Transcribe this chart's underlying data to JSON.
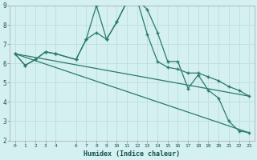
{
  "xlabel": "Humidex (Indice chaleur)",
  "bg_color": "#d4f0f0",
  "grid_color": "#c0e0e0",
  "line_color": "#2a7a6a",
  "xlim": [
    -0.5,
    23.5
  ],
  "ylim": [
    2,
    9
  ],
  "yticks": [
    2,
    3,
    4,
    5,
    6,
    7,
    8,
    9
  ],
  "xticks": [
    0,
    1,
    2,
    3,
    4,
    6,
    7,
    8,
    9,
    10,
    11,
    12,
    13,
    14,
    15,
    16,
    17,
    18,
    19,
    20,
    21,
    22,
    23
  ],
  "line1_x": [
    0,
    1,
    2,
    3,
    4,
    6,
    7,
    8,
    9,
    10,
    11,
    12,
    13,
    14,
    15,
    16,
    17,
    18,
    19,
    20,
    21,
    22,
    23
  ],
  "line1_y": [
    6.5,
    5.9,
    6.2,
    6.6,
    6.5,
    6.2,
    7.25,
    9.0,
    7.25,
    8.15,
    9.2,
    9.3,
    8.8,
    7.6,
    6.1,
    6.1,
    4.7,
    5.4,
    4.6,
    4.2,
    3.0,
    2.5,
    2.4
  ],
  "line2_x": [
    0,
    1,
    2,
    3,
    4,
    6,
    7,
    8,
    9,
    10,
    11,
    12,
    13,
    14,
    15,
    16,
    17,
    18,
    19,
    20,
    21,
    22,
    23
  ],
  "line2_y": [
    6.5,
    5.9,
    6.2,
    6.6,
    6.5,
    6.2,
    7.25,
    7.6,
    7.25,
    8.15,
    9.2,
    9.3,
    7.5,
    6.1,
    5.8,
    5.7,
    5.5,
    5.5,
    5.3,
    5.1,
    4.8,
    4.6,
    4.3
  ],
  "line3_x": [
    0,
    23
  ],
  "line3_y": [
    6.5,
    4.3
  ],
  "line4_x": [
    0,
    23
  ],
  "line4_y": [
    6.5,
    2.4
  ]
}
